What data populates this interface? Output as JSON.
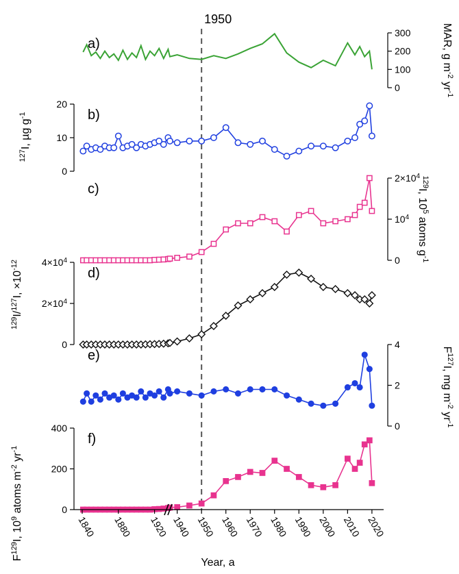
{
  "chart_data": {
    "type": "line",
    "x_axis": {
      "label": "Year, a",
      "ticks": [
        1840,
        1880,
        1920,
        1940,
        1950,
        1960,
        1970,
        1980,
        1990,
        2000,
        2010,
        2020
      ],
      "break_between": [
        1920,
        1940
      ],
      "segments": [
        {
          "from": 1840,
          "to": 1937
        },
        {
          "from": 1937,
          "to": 2022
        }
      ]
    },
    "reference_line": {
      "x": 1950,
      "label": "1950",
      "style": "dashed"
    },
    "panels": [
      {
        "id": "a",
        "label": "a)",
        "axis_side": "right",
        "ylabel": "MAR, g m-2 yr-1",
        "ylabel_parts": [
          "MAR, g m",
          "-2",
          " yr",
          "-1"
        ],
        "yticks": [
          0,
          100,
          200,
          300
        ],
        "ylim": [
          0,
          300
        ],
        "color": "#3aa335",
        "marker": "none",
        "x": [
          1841,
          1845,
          1850,
          1855,
          1860,
          1865,
          1870,
          1875,
          1880,
          1885,
          1890,
          1895,
          1900,
          1905,
          1910,
          1915,
          1920,
          1925,
          1930,
          1935,
          1937,
          1940,
          1945,
          1950,
          1955,
          1960,
          1965,
          1970,
          1975,
          1980,
          1985,
          1990,
          1995,
          2000,
          2005,
          2010,
          2013,
          2015,
          2017,
          2019,
          2020
        ],
        "y": [
          195,
          235,
          175,
          195,
          160,
          200,
          165,
          185,
          150,
          205,
          155,
          190,
          165,
          230,
          155,
          200,
          175,
          215,
          160,
          210,
          170,
          180,
          160,
          155,
          175,
          160,
          185,
          215,
          240,
          295,
          190,
          140,
          110,
          150,
          120,
          245,
          180,
          225,
          170,
          200,
          100
        ]
      },
      {
        "id": "b",
        "label": "b)",
        "axis_side": "left",
        "ylabel": "127I, µg g-1",
        "ylabel_parts": [
          "127",
          "I, µg g",
          "-1"
        ],
        "yticks": [
          0,
          10,
          20
        ],
        "ylim": [
          0,
          20
        ],
        "color": "#1f3fe0",
        "marker": "circle-open",
        "x": [
          1841,
          1845,
          1850,
          1855,
          1860,
          1865,
          1870,
          1875,
          1880,
          1885,
          1890,
          1895,
          1900,
          1905,
          1910,
          1915,
          1920,
          1925,
          1930,
          1935,
          1937,
          1940,
          1945,
          1950,
          1955,
          1960,
          1965,
          1970,
          1975,
          1980,
          1985,
          1990,
          1995,
          2000,
          2005,
          2010,
          2013,
          2015,
          2017,
          2019,
          2020
        ],
        "y": [
          6.0,
          7.5,
          6.5,
          7.0,
          6.5,
          7.5,
          7.0,
          7.0,
          10.5,
          7.0,
          7.5,
          8.0,
          7.0,
          8.0,
          7.5,
          8.0,
          8.5,
          9.0,
          8.0,
          10.0,
          9.0,
          8.5,
          9.0,
          9.0,
          10.0,
          13.0,
          8.5,
          8.0,
          9.0,
          6.5,
          4.5,
          6.0,
          7.5,
          7.5,
          7.0,
          9.0,
          10.0,
          14.0,
          15.0,
          19.5,
          10.5
        ]
      },
      {
        "id": "c",
        "label": "c)",
        "axis_side": "right",
        "ylabel": "129I, 105 atoms g-1",
        "ylabel_parts": [
          "129",
          "I, 10",
          "5",
          " atoms g",
          "-1"
        ],
        "yticks": [
          0,
          10000,
          20000
        ],
        "ytick_labels": [
          "0",
          "10^4",
          "2×10^4"
        ],
        "ylim": [
          0,
          20000
        ],
        "color": "#e8338f",
        "marker": "square-open",
        "x": [
          1841,
          1845,
          1850,
          1855,
          1860,
          1865,
          1870,
          1875,
          1880,
          1885,
          1890,
          1895,
          1900,
          1905,
          1910,
          1915,
          1920,
          1925,
          1930,
          1935,
          1937,
          1940,
          1945,
          1950,
          1955,
          1960,
          1965,
          1970,
          1975,
          1980,
          1985,
          1990,
          1995,
          2000,
          2005,
          2010,
          2013,
          2015,
          2017,
          2019,
          2020
        ],
        "y": [
          0,
          0,
          0,
          0,
          0,
          0,
          0,
          0,
          0,
          0,
          0,
          0,
          0,
          0,
          0,
          0,
          100,
          150,
          200,
          300,
          400,
          600,
          900,
          2000,
          4000,
          7500,
          9000,
          9000,
          10500,
          9500,
          7000,
          11000,
          12000,
          9000,
          9500,
          10000,
          11000,
          13000,
          14000,
          20000,
          12000
        ]
      },
      {
        "id": "d",
        "label": "d)",
        "axis_side": "left",
        "ylabel": "129I/127I, ×10-12",
        "ylabel_parts": [
          "129",
          "I/",
          "127",
          "I, ×10",
          "-12"
        ],
        "yticks": [
          0,
          20000,
          40000
        ],
        "ytick_labels": [
          "0",
          "2×10^4",
          "4×10^4"
        ],
        "ylim": [
          0,
          40000
        ],
        "color": "#111111",
        "marker": "diamond-open",
        "x": [
          1841,
          1845,
          1850,
          1855,
          1860,
          1865,
          1870,
          1875,
          1880,
          1885,
          1890,
          1895,
          1900,
          1905,
          1910,
          1915,
          1920,
          1925,
          1930,
          1935,
          1937,
          1940,
          1945,
          1950,
          1955,
          1960,
          1965,
          1970,
          1975,
          1980,
          1985,
          1990,
          1995,
          2000,
          2005,
          2010,
          2013,
          2015,
          2017,
          2019,
          2020
        ],
        "y": [
          0,
          0,
          0,
          0,
          0,
          0,
          0,
          0,
          0,
          0,
          0,
          0,
          0,
          0,
          100,
          150,
          200,
          300,
          400,
          600,
          800,
          1500,
          3000,
          5000,
          9000,
          14000,
          19000,
          22000,
          25000,
          28000,
          34000,
          35000,
          32000,
          28000,
          27000,
          25000,
          24000,
          22000,
          22000,
          20000,
          24000
        ]
      },
      {
        "id": "e",
        "label": "e)",
        "axis_side": "right",
        "ylabel": "F127I, mg m-2 yr-1",
        "ylabel_parts": [
          "F",
          "127",
          "I, mg m",
          "-2",
          " yr",
          "-1"
        ],
        "yticks": [
          0,
          2,
          4
        ],
        "ylim": [
          0,
          4
        ],
        "color": "#1f3fe0",
        "marker": "circle-filled",
        "x": [
          1841,
          1845,
          1850,
          1855,
          1860,
          1865,
          1870,
          1875,
          1880,
          1885,
          1890,
          1895,
          1900,
          1905,
          1910,
          1915,
          1920,
          1925,
          1930,
          1935,
          1937,
          1940,
          1945,
          1950,
          1955,
          1960,
          1965,
          1970,
          1975,
          1980,
          1985,
          1990,
          1995,
          2000,
          2005,
          2010,
          2013,
          2015,
          2017,
          2019,
          2020
        ],
        "y": [
          1.2,
          1.6,
          1.2,
          1.5,
          1.3,
          1.6,
          1.4,
          1.5,
          1.3,
          1.6,
          1.4,
          1.5,
          1.4,
          1.7,
          1.4,
          1.6,
          1.5,
          1.7,
          1.4,
          1.8,
          1.6,
          1.7,
          1.6,
          1.5,
          1.7,
          1.8,
          1.6,
          1.8,
          1.8,
          1.8,
          1.5,
          1.3,
          1.1,
          1.0,
          1.1,
          1.9,
          2.1,
          1.9,
          3.5,
          2.8,
          1.0
        ]
      },
      {
        "id": "f",
        "label": "f)",
        "axis_side": "left",
        "ylabel": "F129I, 109 atoms m-2 yr-1",
        "ylabel_parts": [
          "F",
          "129",
          "I, 10",
          "9",
          " atoms m",
          "-2",
          " yr",
          "-1"
        ],
        "yticks": [
          0,
          200,
          400
        ],
        "ylim": [
          0,
          400
        ],
        "color": "#e8338f",
        "marker": "square-filled",
        "x": [
          1841,
          1845,
          1850,
          1855,
          1860,
          1865,
          1870,
          1875,
          1880,
          1885,
          1890,
          1895,
          1900,
          1905,
          1910,
          1915,
          1920,
          1925,
          1930,
          1935,
          1937,
          1940,
          1945,
          1950,
          1955,
          1960,
          1965,
          1970,
          1975,
          1980,
          1985,
          1990,
          1995,
          2000,
          2005,
          2010,
          2013,
          2015,
          2017,
          2019,
          2020
        ],
        "y": [
          0,
          0,
          0,
          0,
          0,
          0,
          0,
          0,
          0,
          0,
          0,
          0,
          0,
          0,
          0,
          0,
          2,
          3,
          5,
          8,
          10,
          12,
          20,
          30,
          70,
          140,
          160,
          185,
          180,
          240,
          200,
          160,
          120,
          110,
          120,
          250,
          200,
          230,
          320,
          340,
          130
        ]
      }
    ]
  }
}
